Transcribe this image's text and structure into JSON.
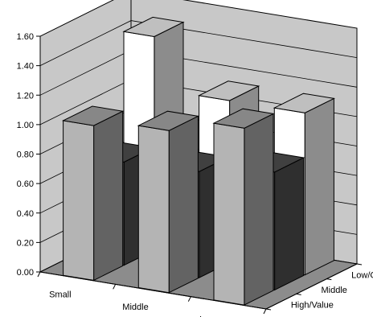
{
  "chart_data": {
    "type": "bar",
    "subtype": "3d-column",
    "title": "",
    "xlabel": "",
    "ylabel": "",
    "ylim": [
      0,
      1.6
    ],
    "yticks": [
      "0.00",
      "0.20",
      "0.40",
      "0.60",
      "0.80",
      "1.00",
      "1.20",
      "1.40",
      "1.60"
    ],
    "categories": [
      "Small",
      "Middle",
      "Large"
    ],
    "depth_categories": [
      "High/Value",
      "Middle",
      "Low/Growth"
    ],
    "grid": true,
    "legend": "none",
    "series": [
      {
        "values": [
          1.05,
          1.1,
          1.2
        ],
        "color": "#b4b4b4"
      },
      {
        "values": [
          0.7,
          0.72,
          0.8
        ],
        "color": "#555555"
      },
      {
        "values": [
          1.45,
          1.1,
          1.1
        ],
        "color": "#ffffff"
      }
    ]
  }
}
